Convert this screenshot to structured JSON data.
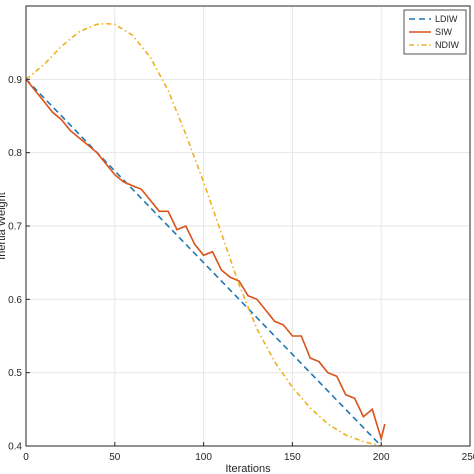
{
  "chart_data": {
    "type": "line",
    "title": "",
    "xlabel": "Iterations",
    "ylabel": "Inertia Weight",
    "xlim": [
      0,
      250
    ],
    "ylim": [
      0.4,
      1.0
    ],
    "xticks": [
      0,
      50,
      100,
      150,
      200,
      250
    ],
    "xtick_labels": [
      "0",
      "50",
      "100",
      "150",
      "200",
      "250"
    ],
    "yticks": [
      0.4,
      0.5,
      0.6,
      0.7,
      0.8,
      0.9
    ],
    "ytick_labels": [
      "0.4",
      "0.5",
      "0.6",
      "0.7",
      "0.8",
      "0.9"
    ],
    "grid": true,
    "legend_position": "top-right",
    "series": [
      {
        "name": "LDIW",
        "color": "#1f77b4",
        "style": "dashed",
        "x": [
          0,
          200
        ],
        "y": [
          0.9,
          0.4
        ]
      },
      {
        "name": "SIW",
        "color": "#d95319",
        "style": "solid",
        "x": [
          0,
          5,
          10,
          15,
          20,
          25,
          30,
          35,
          40,
          45,
          50,
          55,
          60,
          65,
          70,
          75,
          80,
          85,
          90,
          95,
          100,
          105,
          110,
          115,
          120,
          125,
          130,
          135,
          140,
          145,
          150,
          155,
          160,
          165,
          170,
          175,
          180,
          185,
          190,
          195,
          200,
          202
        ],
        "y": [
          0.9,
          0.885,
          0.87,
          0.855,
          0.845,
          0.83,
          0.82,
          0.81,
          0.8,
          0.785,
          0.77,
          0.76,
          0.755,
          0.75,
          0.735,
          0.72,
          0.72,
          0.695,
          0.7,
          0.675,
          0.66,
          0.665,
          0.64,
          0.63,
          0.625,
          0.605,
          0.6,
          0.585,
          0.57,
          0.565,
          0.55,
          0.55,
          0.52,
          0.515,
          0.5,
          0.495,
          0.47,
          0.465,
          0.44,
          0.45,
          0.41,
          0.43
        ]
      },
      {
        "name": "NDIW",
        "color": "#edb120",
        "style": "dash-dot",
        "x": [
          0,
          10,
          20,
          30,
          40,
          45,
          50,
          60,
          70,
          80,
          90,
          100,
          110,
          120,
          130,
          140,
          150,
          160,
          170,
          180,
          190,
          200
        ],
        "y": [
          0.9,
          0.92,
          0.945,
          0.965,
          0.975,
          0.976,
          0.975,
          0.96,
          0.93,
          0.885,
          0.825,
          0.76,
          0.69,
          0.62,
          0.56,
          0.515,
          0.48,
          0.452,
          0.43,
          0.415,
          0.406,
          0.4
        ]
      }
    ]
  }
}
